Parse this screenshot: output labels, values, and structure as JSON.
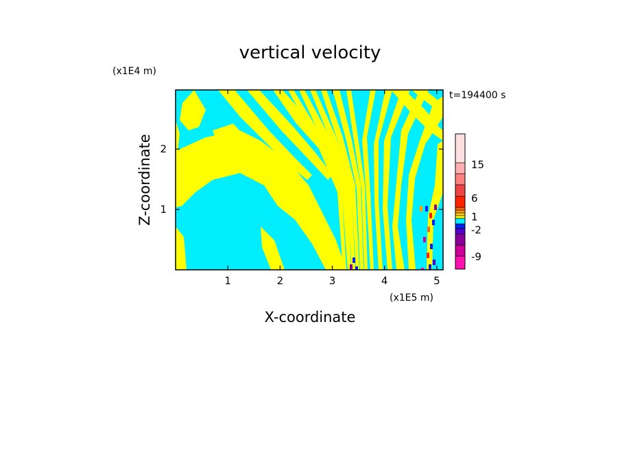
{
  "chart_data": {
    "type": "heatmap",
    "title": "vertical velocity",
    "time_label": "t=194400 s",
    "xlabel": "X-coordinate",
    "ylabel": "Z-coordinate",
    "x_unit": "(x1E5 m)",
    "y_unit": "(x1E4 m)",
    "xlim": [
      0,
      5.12
    ],
    "ylim": [
      0,
      2.98
    ],
    "x_ticks": [
      1,
      2,
      3,
      4,
      5
    ],
    "y_ticks": [
      1,
      2
    ],
    "dominant_colors": {
      "positive": "#ffff00",
      "negative": "#00eeff"
    },
    "colorbar": {
      "levels": [
        "#ff10b0",
        "#cc0099",
        "#880099",
        "#5500cc",
        "#0022ee",
        "#00eeff",
        "#ffff00",
        "#ffcc00",
        "#ff9900",
        "#ff6600",
        "#ff2200",
        "#ee4444",
        "#ff8080",
        "#ffb0b0",
        "#ffe0e0"
      ],
      "tick_labels": [
        "-9",
        "-2",
        "1",
        "6",
        "15"
      ]
    }
  }
}
